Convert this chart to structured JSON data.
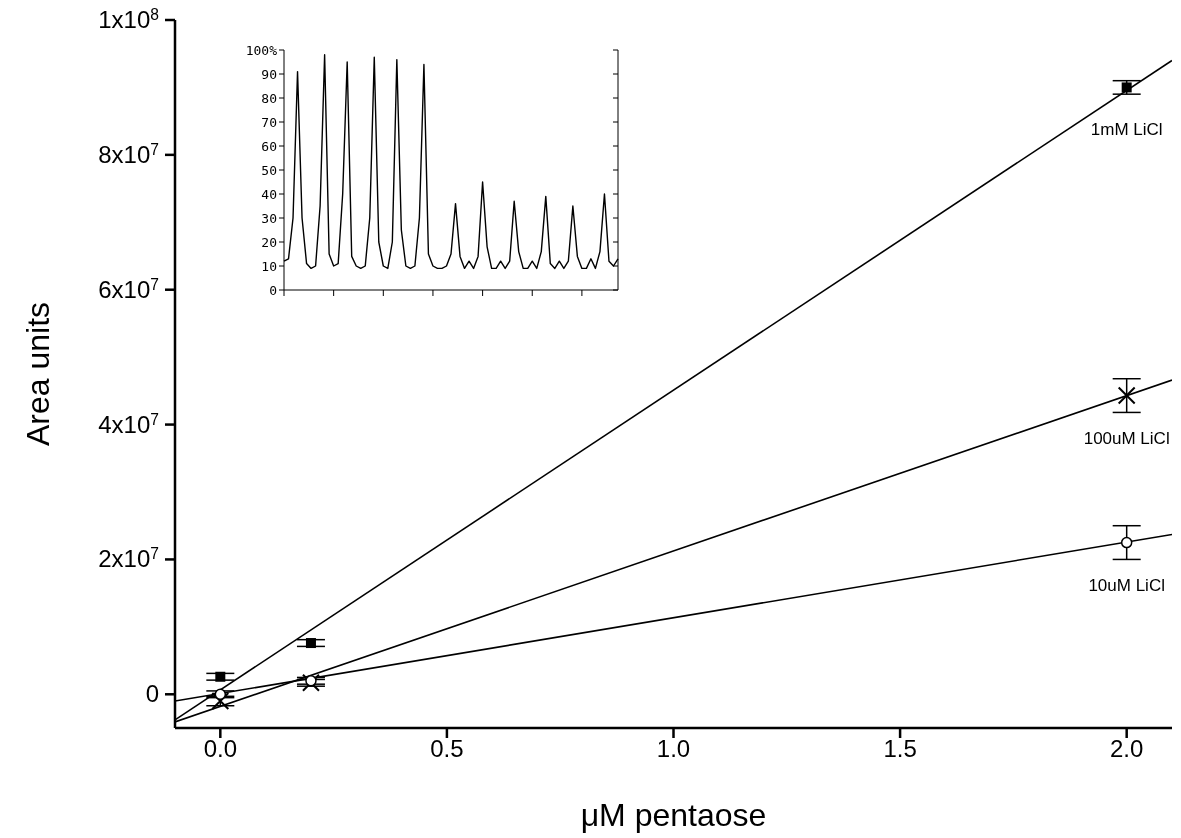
{
  "chart_data": [
    {
      "type": "scatter",
      "xlabel": "μM pentaose",
      "ylabel": "Area units",
      "xlim": [
        -0.1,
        2.1
      ],
      "ylim": [
        -5000000,
        100000000
      ],
      "xticks": [
        {
          "value": 0,
          "label": "0.0"
        },
        {
          "value": 0.5,
          "label": "0.5"
        },
        {
          "value": 1,
          "label": "1.0"
        },
        {
          "value": 1.5,
          "label": "1.5"
        },
        {
          "value": 2,
          "label": "2.0"
        }
      ],
      "yticks": [
        0,
        {
          "value": 20000000,
          "label": "2x10$^{7}$"
        },
        {
          "value": 40000000,
          "label": "4x10$^{7}$"
        },
        {
          "value": 60000000,
          "label": "6x10$^{7}$"
        },
        {
          "value": 80000000,
          "label": "8x10$^{7}$"
        },
        {
          "value": 100000000,
          "label": "1x10$^{8}$"
        }
      ],
      "line_style": "solid",
      "series": [
        {
          "name": "1mM LiCl",
          "type": "scatter",
          "color": "#000000",
          "marker": "square",
          "x": [
            0,
            0.2,
            2
          ],
          "values": [
            2600000,
            7600000,
            90000000
          ],
          "errors": [
            500000,
            500000,
            1000000
          ]
        },
        {
          "name": "100uM LiCl",
          "type": "scatter",
          "color": "#000000",
          "marker": "cross",
          "x": [
            0,
            0.2,
            2
          ],
          "values": [
            -1000000,
            1700000,
            44300000
          ],
          "errors": [
            700000,
            500000,
            2500000
          ]
        },
        {
          "name": "10uM LiCl",
          "type": "scatter",
          "color": "#000000",
          "marker": "circle",
          "x": [
            0,
            0.2,
            2
          ],
          "values": [
            0,
            2000000,
            22500000
          ],
          "errors": [
            500000,
            500000,
            2500000
          ]
        },
        {
          "type": "line",
          "color": "#000000",
          "x": [
            -0.1,
            2.1
          ],
          "values": [
            -3800000,
            94000000
          ]
        },
        {
          "type": "line",
          "color": "#000000",
          "x": [
            -0.1,
            2.1
          ],
          "values": [
            -4100000,
            46600000
          ]
        },
        {
          "type": "line",
          "color": "#000000",
          "x": [
            -0.1,
            2.1
          ],
          "values": [
            -1000000,
            23700000
          ]
        }
      ]
    },
    {
      "type": "line",
      "color": "#000000",
      "ylim": [
        0,
        100
      ],
      "tick_labels": "y",
      "yticks": [
        0,
        10,
        20,
        30,
        40,
        50,
        60,
        70,
        80,
        90,
        {
          "value": 100,
          "label": "100%"
        }
      ],
      "categories": [
        null,
        null,
        null,
        null,
        null,
        null,
        null,
        null,
        null,
        null,
        null,
        null,
        null,
        null,
        null,
        null,
        null,
        null,
        null,
        null,
        null,
        null,
        null,
        null,
        null,
        null,
        null,
        null,
        null,
        null,
        null,
        null,
        null,
        null,
        null,
        null,
        null,
        null,
        null,
        null,
        null,
        null,
        null,
        null,
        null,
        null,
        null,
        null,
        null,
        null,
        null,
        null,
        null,
        null,
        null,
        null,
        null,
        null,
        null,
        null,
        null,
        null,
        null,
        null,
        null,
        null,
        null,
        null,
        null,
        null,
        null,
        null,
        null,
        null,
        null
      ],
      "values": [
        12,
        13,
        30,
        91,
        30,
        11,
        9,
        10,
        35,
        98,
        15,
        10,
        11,
        40,
        95,
        14,
        10,
        9,
        10,
        30,
        97,
        20,
        10,
        9,
        20,
        96,
        25,
        10,
        9,
        10,
        30,
        94,
        15,
        10,
        9,
        9,
        10,
        15,
        36,
        14,
        9,
        12,
        9,
        14,
        45,
        18,
        9,
        9,
        12,
        9,
        12,
        37,
        16,
        9,
        9,
        12,
        9,
        16,
        39,
        11,
        9,
        12,
        9,
        12,
        35,
        14,
        9,
        9,
        13,
        9,
        16,
        40,
        12,
        10,
        13
      ]
    }
  ]
}
